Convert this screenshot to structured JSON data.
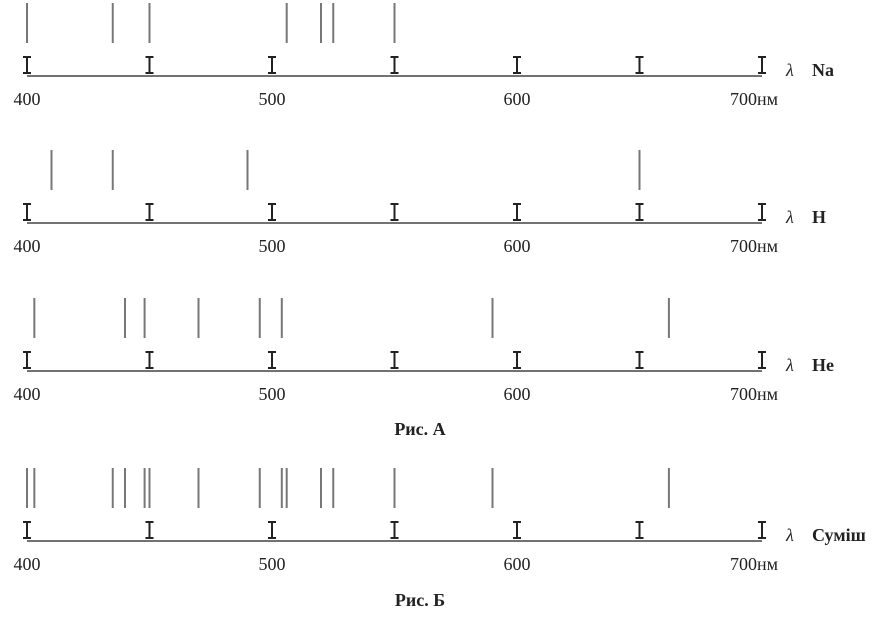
{
  "spectra": [
    {
      "name": "Na",
      "lines": [
        400,
        435,
        450,
        506,
        520,
        525,
        550
      ]
    },
    {
      "name": "H",
      "lines": [
        410,
        435,
        490,
        650
      ]
    },
    {
      "name": "He",
      "lines": [
        403,
        440,
        448,
        470,
        495,
        504,
        590,
        662
      ]
    },
    {
      "name": "Суміш",
      "lines": [
        400,
        403,
        435,
        440,
        448,
        450,
        470,
        495,
        504,
        506,
        520,
        525,
        550,
        590,
        662
      ]
    }
  ],
  "axis": {
    "xlim": [
      400,
      700
    ],
    "marks": [
      400,
      450,
      500,
      550,
      600,
      650,
      700
    ],
    "labels": [
      400,
      500,
      600,
      {
        "value": 700,
        "label": "700нм"
      }
    ],
    "symbol": "λ"
  },
  "captions": [
    "Рис. А",
    "Рис. Б"
  ]
}
